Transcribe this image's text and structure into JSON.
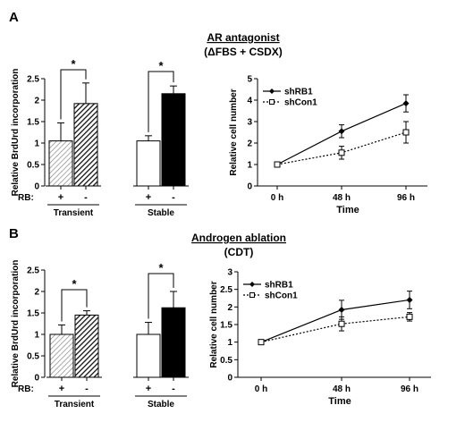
{
  "panels": {
    "A": {
      "letter": "A",
      "title": "AR antagonist",
      "subtitle": "(ΔFBS + CSDX)"
    },
    "B": {
      "letter": "B",
      "title": "Androgen ablation",
      "subtitle": "(CDT)"
    }
  },
  "colors": {
    "line_shRB1": "#000000",
    "line_shCon1": "#000000",
    "text": "#000000"
  },
  "chart_data": [
    {
      "panel": "A",
      "type": "bar",
      "ylabel": "Relative BrdUrd incorporation",
      "ylim": [
        0,
        2.5
      ],
      "yticks": [
        "0",
        "0.5",
        "1",
        "1.5",
        "2",
        "2.5"
      ],
      "row_label": "RB:",
      "groups": [
        {
          "name": "Transient",
          "signs": [
            "+",
            "-"
          ],
          "values": [
            1.05,
            1.92
          ],
          "errors": [
            0.42,
            0.48
          ],
          "fills": [
            "light-hatch",
            "dark-hatch"
          ],
          "significance": "*"
        },
        {
          "name": "Stable",
          "signs": [
            "+",
            "-"
          ],
          "values": [
            1.05,
            2.15
          ],
          "errors": [
            0.12,
            0.18
          ],
          "fills": [
            "white",
            "black"
          ],
          "significance": "*"
        }
      ]
    },
    {
      "panel": "A",
      "type": "line",
      "xlabel": "Time",
      "ylabel": "Relative cell number",
      "x": [
        "0 h",
        "48 h",
        "96 h"
      ],
      "ylim": [
        0,
        5
      ],
      "yticks": [
        "0",
        "1",
        "2",
        "3",
        "4",
        "5"
      ],
      "legend_position": "top-left",
      "series": [
        {
          "name": "shRB1",
          "values": [
            1.0,
            2.55,
            3.85
          ],
          "errors": [
            0.05,
            0.3,
            0.4
          ],
          "style": "solid",
          "marker": "filled-diamond"
        },
        {
          "name": "shCon1",
          "values": [
            1.0,
            1.55,
            2.5
          ],
          "errors": [
            0.05,
            0.3,
            0.5
          ],
          "style": "dotted",
          "marker": "open-square"
        }
      ]
    },
    {
      "panel": "B",
      "type": "bar",
      "ylabel": "Relative BrdUrd incorporation",
      "ylim": [
        0,
        2.5
      ],
      "yticks": [
        "0",
        "0.5",
        "1",
        "1.5",
        "2",
        "2.5"
      ],
      "row_label": "RB:",
      "groups": [
        {
          "name": "Transient",
          "signs": [
            "+",
            "-"
          ],
          "values": [
            1.0,
            1.45
          ],
          "errors": [
            0.22,
            0.1
          ],
          "fills": [
            "light-hatch",
            "dark-hatch"
          ],
          "significance": "*"
        },
        {
          "name": "Stable",
          "signs": [
            "+",
            "-"
          ],
          "values": [
            1.0,
            1.62
          ],
          "errors": [
            0.28,
            0.38
          ],
          "fills": [
            "white",
            "black"
          ],
          "significance": "*"
        }
      ]
    },
    {
      "panel": "B",
      "type": "line",
      "xlabel": "Time",
      "ylabel": "Relative cell number",
      "x": [
        "0 h",
        "48 h",
        "96 h"
      ],
      "ylim": [
        0,
        3
      ],
      "yticks": [
        "0",
        "0.5",
        "1",
        "1.5",
        "2",
        "2.5",
        "3"
      ],
      "legend_position": "top-left",
      "series": [
        {
          "name": "shRB1",
          "values": [
            1.0,
            1.92,
            2.2
          ],
          "errors": [
            0.05,
            0.27,
            0.25
          ],
          "style": "solid",
          "marker": "filled-diamond"
        },
        {
          "name": "shCon1",
          "values": [
            1.0,
            1.52,
            1.72
          ],
          "errors": [
            0.05,
            0.2,
            0.12
          ],
          "style": "dotted",
          "marker": "open-square"
        }
      ]
    }
  ]
}
